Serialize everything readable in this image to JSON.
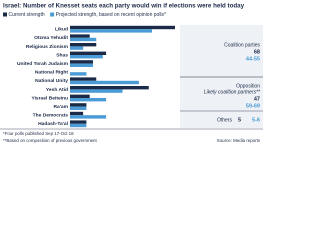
{
  "chart_data": {
    "type": "bar",
    "orientation": "horizontal",
    "title": "Israel: Number of Knesset seats each party would win if elections were held today",
    "categories": [
      "Likud",
      "Otzma Yehudit",
      "Religious Zionism",
      "Shas",
      "United Torah Judaism",
      "National Right",
      "National Unity",
      "Yesh Atid",
      "Yisrael Beiteinu",
      "Ra'am",
      "The Democrats",
      "Hadash-Ta'al"
    ],
    "series": [
      {
        "name": "Current strength",
        "color": "#1b2a47",
        "values": [
          32,
          6,
          8,
          11,
          7,
          0,
          8,
          24,
          6,
          5,
          4,
          5
        ]
      },
      {
        "name": "Projected strength, based on recent opinion polls*",
        "color": "#4a9bd6",
        "values": [
          25,
          8,
          4,
          10,
          7,
          5,
          21,
          16,
          11,
          5,
          11,
          5
        ]
      }
    ],
    "xlim": [
      0,
      32
    ],
    "groups": [
      {
        "label": "Coalition parties",
        "current": 68,
        "projected": "44-55"
      },
      {
        "label": "Opposition",
        "sublabel": "Likely coalition partners**",
        "current": 47,
        "projected": "59-69"
      },
      {
        "label": "Others",
        "current": 5,
        "projected": "5-6"
      }
    ],
    "footnotes": [
      "*Four polls published Sep 17-Oct 18",
      "**Based on composition of previous government"
    ],
    "source": "Source: Media reports"
  }
}
